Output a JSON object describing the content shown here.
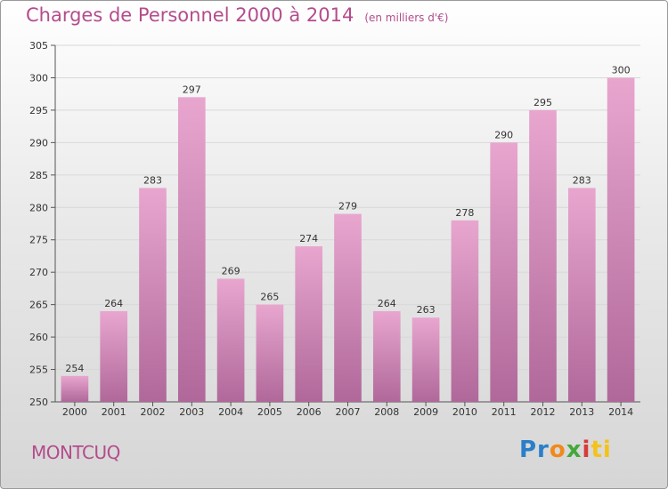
{
  "chart_data": {
    "type": "bar",
    "title": "Charges de Personnel 2000 à 2014",
    "unit_note": "(en milliers d'€)",
    "categories": [
      "2000",
      "2001",
      "2002",
      "2003",
      "2004",
      "2005",
      "2006",
      "2007",
      "2008",
      "2009",
      "2010",
      "2011",
      "2012",
      "2013",
      "2014"
    ],
    "values": [
      254,
      264,
      283,
      297,
      269,
      265,
      274,
      279,
      264,
      263,
      278,
      290,
      295,
      283,
      300
    ],
    "ylim": [
      250,
      305
    ],
    "yticks": [
      250,
      255,
      260,
      265,
      270,
      275,
      280,
      285,
      290,
      295,
      300,
      305
    ],
    "grid": true,
    "bar_color_top": "#e8a6cf",
    "bar_color_bottom": "#b0689a"
  },
  "place_name": "MONTCUQ",
  "logo": {
    "parts": [
      "Pr",
      "o",
      "x",
      "i",
      "ti"
    ]
  }
}
